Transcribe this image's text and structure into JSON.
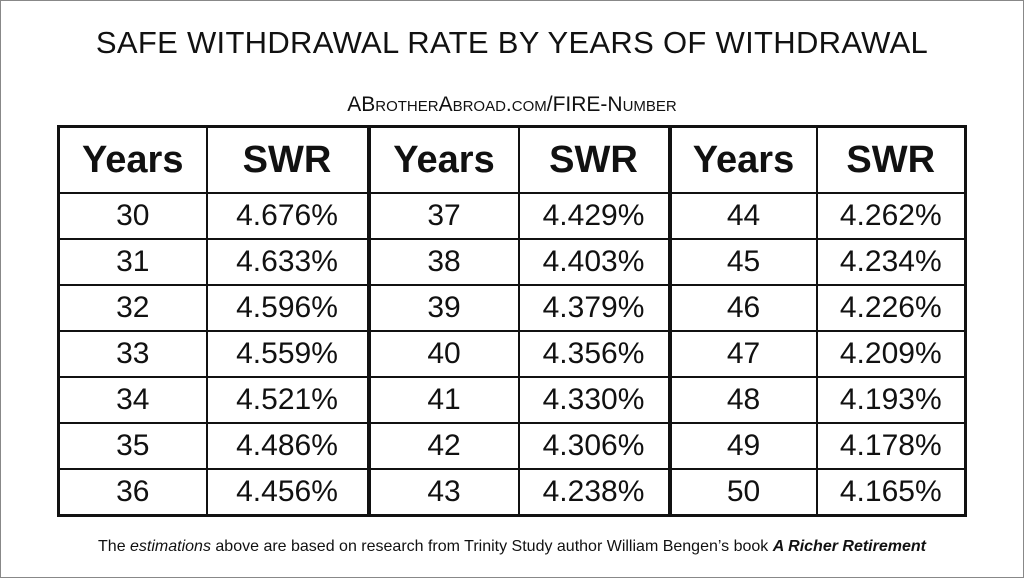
{
  "title": "SAFE WITHDRAWAL RATE BY YEARS OF WITHDRAWAL",
  "subtitle": "ABrotherAbroad.com/FIRE-Number",
  "table": {
    "header": [
      "Years",
      "SWR",
      "Years",
      "SWR",
      "Years",
      "SWR"
    ],
    "rows": [
      [
        "30",
        "4.676%",
        "37",
        "4.429%",
        "44",
        "4.262%"
      ],
      [
        "31",
        "4.633%",
        "38",
        "4.403%",
        "45",
        "4.234%"
      ],
      [
        "32",
        "4.596%",
        "39",
        "4.379%",
        "46",
        "4.226%"
      ],
      [
        "33",
        "4.559%",
        "40",
        "4.356%",
        "47",
        "4.209%"
      ],
      [
        "34",
        "4.521%",
        "41",
        "4.330%",
        "48",
        "4.193%"
      ],
      [
        "35",
        "4.486%",
        "42",
        "4.306%",
        "49",
        "4.178%"
      ],
      [
        "36",
        "4.456%",
        "43",
        "4.238%",
        "50",
        "4.165%"
      ]
    ]
  },
  "footer": {
    "parts": [
      "The ",
      "estimations",
      " above are based on research from Trinity Study author William Bengen’s book ",
      "A Richer Retirement"
    ]
  }
}
